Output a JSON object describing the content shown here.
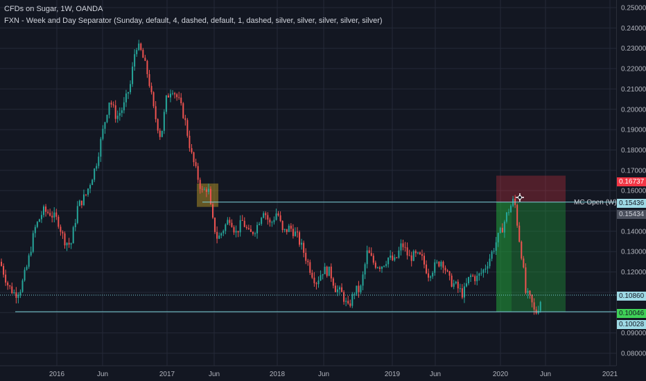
{
  "legend": {
    "title": "CFDs on Sugar, 1W, OANDA",
    "indicator": "FXN - Week and Day Separator (Sunday, default, 4, dashed, default, 1, dashed, silver, silver, silver, silver, silver)"
  },
  "price_axis": {
    "ticks": [
      "0.25000",
      "0.24000",
      "0.23000",
      "0.22000",
      "0.21000",
      "0.20000",
      "0.19000",
      "0.18000",
      "0.17000",
      "0.16000",
      "0.14000",
      "0.13000",
      "0.12000",
      "0.09000",
      "0.08000"
    ],
    "tags": [
      {
        "label": "0.16737",
        "color": "#f23645",
        "text": "#ffffff"
      },
      {
        "label": "0.15436",
        "color": "#9edae5",
        "text": "#131722"
      },
      {
        "label": "0.15434",
        "color": "#4a4f5c",
        "text": "#d1d4dc"
      },
      {
        "label": "0.10860",
        "color": "#9edae5",
        "text": "#131722"
      },
      {
        "label": "0.10046",
        "color": "#3fd157",
        "text": "#131722"
      },
      {
        "label": "0.10028",
        "color": "#9edae5",
        "text": "#131722"
      }
    ]
  },
  "time_axis": {
    "labels": [
      "2016",
      "Jun",
      "2017",
      "Jun",
      "2018",
      "Jun",
      "2019",
      "Jun",
      "2020",
      "Jun",
      "2021"
    ]
  },
  "annotations": {
    "hline_label": "MC Open (W)"
  },
  "colors": {
    "up": "#26a69a",
    "down": "#ef5350",
    "grid": "#242a38",
    "hline": "#7ed3dc",
    "background": "#131722"
  }
}
